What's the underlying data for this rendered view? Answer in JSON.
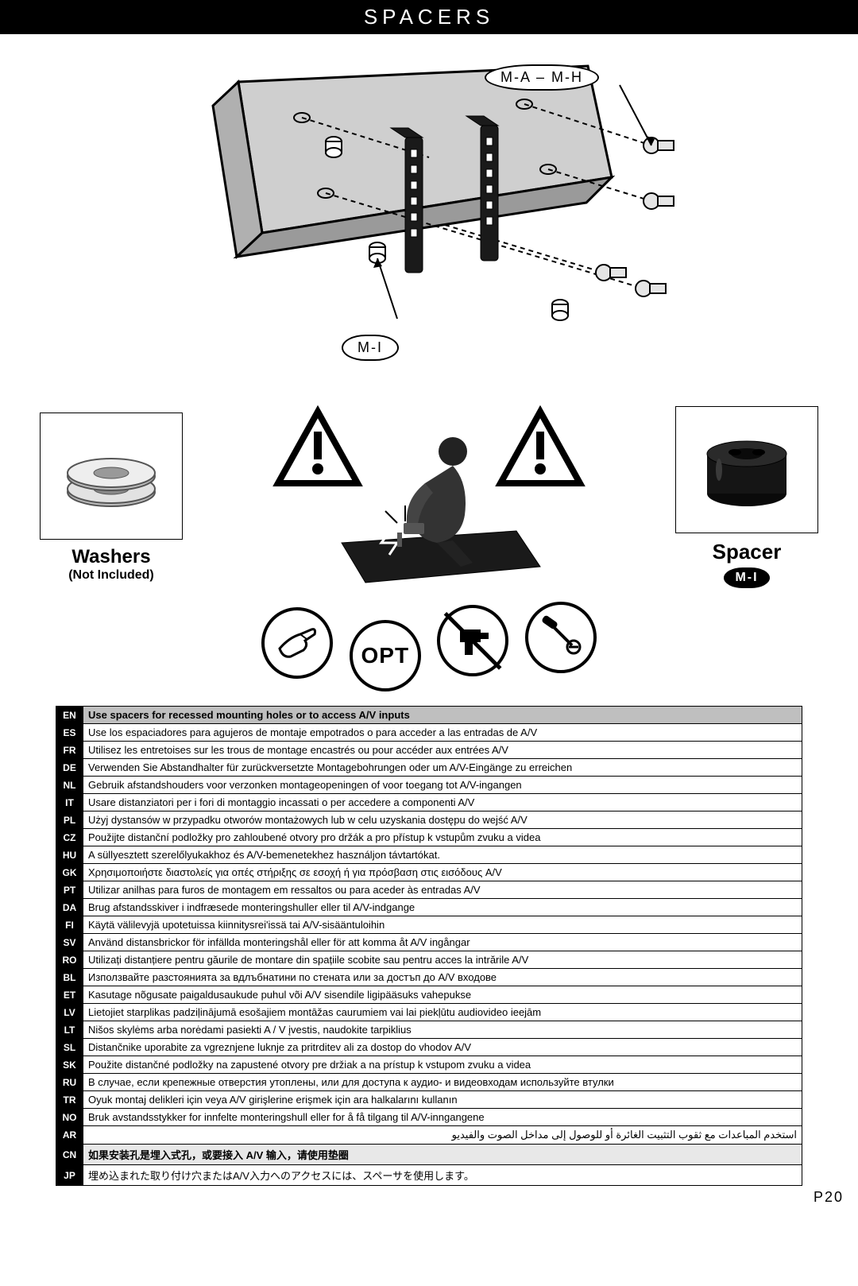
{
  "header": {
    "title": "SPACERS"
  },
  "diagram": {
    "label_mah": "M-A – M-H",
    "label_mi": "M-I"
  },
  "washers": {
    "title": "Washers",
    "subtitle": "(Not Included)"
  },
  "spacer": {
    "title": "Spacer",
    "badge": "M-I"
  },
  "opt": {
    "label": "OPT"
  },
  "page": {
    "num": "P20"
  },
  "table": {
    "rows": [
      {
        "code": "EN",
        "text": "Use spacers for recessed mounting holes or to access A/V inputs",
        "hl": true
      },
      {
        "code": "ES",
        "text": "Use los espaciadores para agujeros de montaje empotrados o para acceder a las entradas de A/V"
      },
      {
        "code": "FR",
        "text": "Utilisez les entretoises sur les trous de montage encastrés ou pour accéder aux entrées A/V"
      },
      {
        "code": "DE",
        "text": "Verwenden Sie Abstandhalter für zurückversetzte Montagebohrungen oder um A/V-Eingänge zu erreichen"
      },
      {
        "code": "NL",
        "text": "Gebruik afstandshouders voor verzonken montageopeningen of voor toegang tot A/V-ingangen"
      },
      {
        "code": "IT",
        "text": "Usare distanziatori per i fori di montaggio incassati o per accedere a componenti A/V"
      },
      {
        "code": "PL",
        "text": "Użyj dystansów w przypadku otworów montażowych lub w celu uzyskania dostępu do wejść A/V"
      },
      {
        "code": "CZ",
        "text": "Použijte distanční podložky pro zahloubené otvory pro držák a pro přístup k vstupům zvuku a videa"
      },
      {
        "code": "HU",
        "text": "A süllyesztett szerelőlyukakhoz és A/V-bemenetekhez használjon távtartókat."
      },
      {
        "code": "GK",
        "text": "Χρησιμοποιήστε διαστολείς για οπές στήριξης σε εσοχή ή για πρόσβαση στις εισόδους A/V"
      },
      {
        "code": "PT",
        "text": "Utilizar anilhas para furos de montagem em ressaltos ou para aceder às entradas A/V"
      },
      {
        "code": "DA",
        "text": "Brug afstandsskiver i indfræsede monteringshuller eller til A/V-indgange"
      },
      {
        "code": "FI",
        "text": "Käytä välilevyjä upotetuissa kiinnitysrei'issä tai A/V-sisääntuloihin"
      },
      {
        "code": "SV",
        "text": "Använd distansbrickor för infällda monteringshål eller för att komma åt A/V ingångar"
      },
      {
        "code": "RO",
        "text": "Utilizați distanțiere pentru găurile de montare din spațiile scobite sau pentru acces la intrările A/V"
      },
      {
        "code": "BL",
        "text": "Използвайте разстоянията за вдлъбнатини по стената или за достъп до A/V входове"
      },
      {
        "code": "ET",
        "text": "Kasutage nõgusate paigaldusaukude puhul või A/V sisendile ligipääsuks vahepukse"
      },
      {
        "code": "LV",
        "text": "Lietojiet starplikas padziļinājumā esošajiem montāžas caurumiem vai lai piekļūtu audiovideo ieejām"
      },
      {
        "code": "LT",
        "text": "Nišos skylėms arba norėdami pasiekti A / V įvestis, naudokite tarpiklius"
      },
      {
        "code": "SL",
        "text": "Distančnike uporabite za vgreznjene luknje za pritrditev ali za dostop do vhodov A/V"
      },
      {
        "code": "SK",
        "text": "Použite distančné podložky na zapustené otvory pre držiak a na prístup k vstupom zvuku a videa"
      },
      {
        "code": "RU",
        "text": "В случае, если крепежные отверстия утоплены, или для доступа к аудио- и видеовходам используйте втулки"
      },
      {
        "code": "TR",
        "text": "Oyuk montaj delikleri için veya A/V girişlerine erişmek için ara halkalarını kullanın"
      },
      {
        "code": "NO",
        "text": "Bruk avstandsstykker for innfelte monteringshull eller for å få tilgang til A/V-inngangene"
      },
      {
        "code": "AR",
        "text": "استخدم المباعدات مع ثقوب التثبيت الغائرة أو للوصول إلى مداخل الصوت والفيديو",
        "rtl": true
      },
      {
        "code": "CN",
        "text": "如果安装孔是埋入式孔，或要接入 A/V 输入，请使用垫圈",
        "cn": true
      },
      {
        "code": "JP",
        "text": "埋め込まれた取り付け穴またはA/V入力へのアクセスには、スペーサを使用します。"
      }
    ]
  }
}
